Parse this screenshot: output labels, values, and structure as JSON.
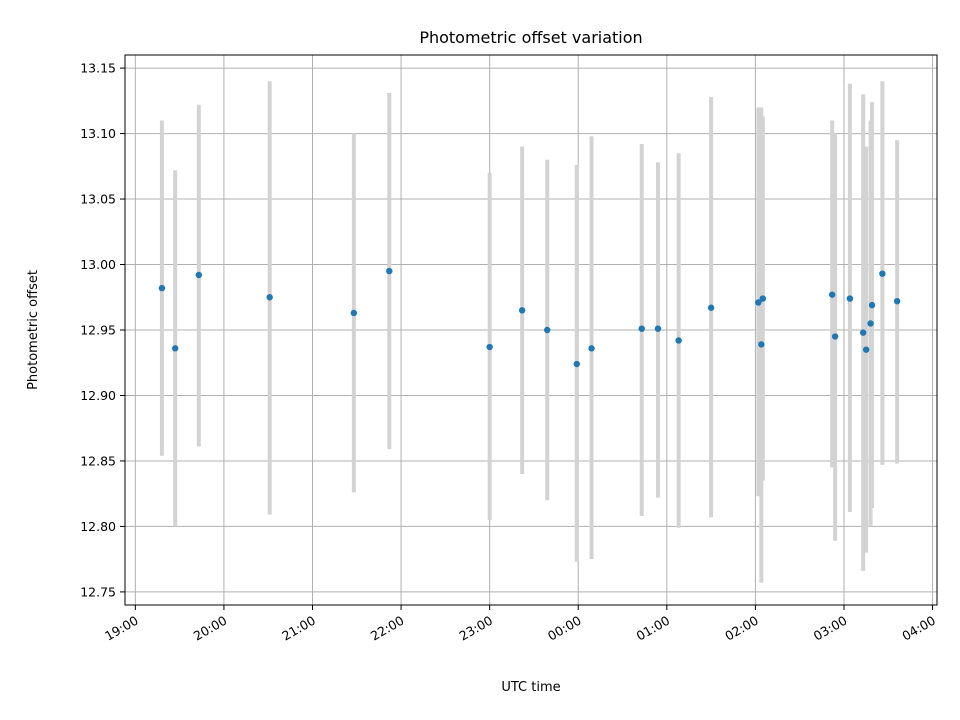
{
  "chart_data": {
    "type": "scatter",
    "title": "Photometric offset variation",
    "xlabel": "UTC time",
    "ylabel": "Photometric offset",
    "xlim": [
      "18:53",
      "04:03"
    ],
    "ylim": [
      12.74,
      13.16
    ],
    "x_tick_labels": [
      "19:00",
      "20:00",
      "21:00",
      "22:00",
      "23:00",
      "00:00",
      "01:00",
      "02:00",
      "03:00",
      "04:00"
    ],
    "y_ticks": [
      12.75,
      12.8,
      12.85,
      12.9,
      12.95,
      13.0,
      13.05,
      13.1,
      13.15
    ],
    "y_tick_labels": [
      "12.75",
      "12.80",
      "12.85",
      "12.90",
      "12.95",
      "13.00",
      "13.05",
      "13.10",
      "13.15"
    ],
    "grid": true,
    "marker_color": "#1f77b4",
    "errorbar_color": "#d3d3d3",
    "points": [
      {
        "time": "19:18",
        "value": 12.982,
        "low": 12.854,
        "high": 13.11
      },
      {
        "time": "19:27",
        "value": 12.936,
        "low": 12.8,
        "high": 13.072
      },
      {
        "time": "19:43",
        "value": 12.992,
        "low": 12.861,
        "high": 13.122
      },
      {
        "time": "20:31",
        "value": 12.975,
        "low": 12.809,
        "high": 13.14
      },
      {
        "time": "21:28",
        "value": 12.963,
        "low": 12.826,
        "high": 13.1
      },
      {
        "time": "21:52",
        "value": 12.995,
        "low": 12.859,
        "high": 13.131
      },
      {
        "time": "23:00",
        "value": 12.937,
        "low": 12.805,
        "high": 13.07
      },
      {
        "time": "23:22",
        "value": 12.965,
        "low": 12.84,
        "high": 13.09
      },
      {
        "time": "23:39",
        "value": 12.95,
        "low": 12.82,
        "high": 13.08
      },
      {
        "time": "23:59",
        "value": 12.924,
        "low": 12.773,
        "high": 13.076
      },
      {
        "time": "00:09",
        "value": 12.936,
        "low": 12.775,
        "high": 13.098
      },
      {
        "time": "00:43",
        "value": 12.951,
        "low": 12.808,
        "high": 13.092
      },
      {
        "time": "00:54",
        "value": 12.951,
        "low": 12.822,
        "high": 13.078
      },
      {
        "time": "01:08",
        "value": 12.942,
        "low": 12.799,
        "high": 13.085
      },
      {
        "time": "01:30",
        "value": 12.967,
        "low": 12.807,
        "high": 13.128
      },
      {
        "time": "02:02",
        "value": 12.971,
        "low": 12.823,
        "high": 13.12
      },
      {
        "time": "02:04",
        "value": 12.939,
        "low": 12.757,
        "high": 13.12
      },
      {
        "time": "02:05",
        "value": 12.974,
        "low": 12.835,
        "high": 13.113
      },
      {
        "time": "02:52",
        "value": 12.977,
        "low": 12.845,
        "high": 13.11
      },
      {
        "time": "02:54",
        "value": 12.945,
        "low": 12.789,
        "high": 13.1
      },
      {
        "time": "03:04",
        "value": 12.974,
        "low": 12.811,
        "high": 13.138
      },
      {
        "time": "03:13",
        "value": 12.948,
        "low": 12.766,
        "high": 13.13
      },
      {
        "time": "03:15",
        "value": 12.935,
        "low": 12.78,
        "high": 13.09
      },
      {
        "time": "03:18",
        "value": 12.955,
        "low": 12.8,
        "high": 13.11
      },
      {
        "time": "03:19",
        "value": 12.969,
        "low": 12.814,
        "high": 13.124
      },
      {
        "time": "03:26",
        "value": 12.993,
        "low": 12.847,
        "high": 13.14
      },
      {
        "time": "03:36",
        "value": 12.972,
        "low": 12.848,
        "high": 13.095
      }
    ]
  }
}
